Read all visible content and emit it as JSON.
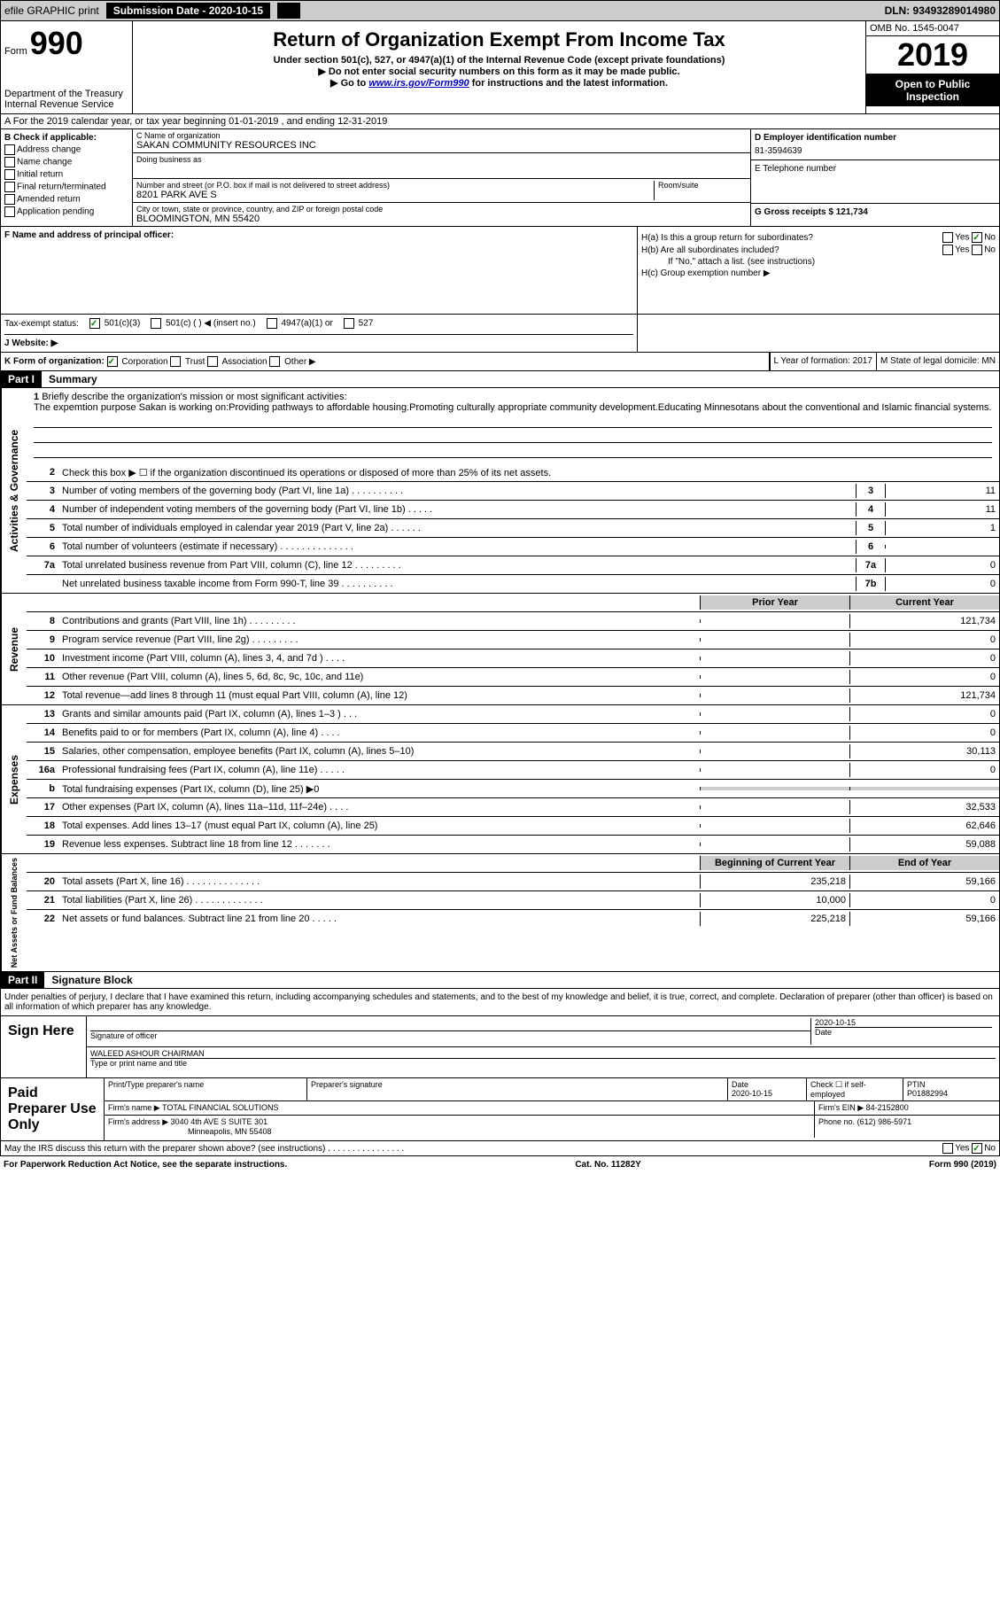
{
  "topbar": {
    "efile": "efile GRAPHIC print",
    "submission_label": "Submission Date - 2020-10-15",
    "dln": "DLN: 93493289014980"
  },
  "header": {
    "form_label": "Form",
    "form_number": "990",
    "dept": "Department of the Treasury",
    "irs": "Internal Revenue Service",
    "title": "Return of Organization Exempt From Income Tax",
    "subtitle": "Under section 501(c), 527, or 4947(a)(1) of the Internal Revenue Code (except private foundations)",
    "note1": "▶ Do not enter social security numbers on this form as it may be made public.",
    "note2_pre": "▶ Go to ",
    "note2_link": "www.irs.gov/Form990",
    "note2_post": " for instructions and the latest information.",
    "omb": "OMB No. 1545-0047",
    "year": "2019",
    "open_public": "Open to Public Inspection"
  },
  "section_a": "A For the 2019 calendar year, or tax year beginning 01-01-2019   , and ending 12-31-2019",
  "col_b": {
    "header": "B Check if applicable:",
    "items": [
      "Address change",
      "Name change",
      "Initial return",
      "Final return/terminated",
      "Amended return",
      "Application pending"
    ]
  },
  "org": {
    "name_label": "C Name of organization",
    "name": "SAKAN COMMUNITY RESOURCES INC",
    "dba_label": "Doing business as",
    "addr_label": "Number and street (or P.O. box if mail is not delivered to street address)",
    "room_label": "Room/suite",
    "addr": "8201 PARK AVE S",
    "city_label": "City or town, state or province, country, and ZIP or foreign postal code",
    "city": "BLOOMINGTON, MN  55420"
  },
  "right_col": {
    "ein_label": "D Employer identification number",
    "ein": "81-3594639",
    "phone_label": "E Telephone number",
    "gross_label": "G Gross receipts $ 121,734"
  },
  "f_label": "F  Name and address of principal officer:",
  "h": {
    "ha": "H(a)  Is this a group return for subordinates?",
    "hb": "H(b)  Are all subordinates included?",
    "hb_note": "If \"No,\" attach a list. (see instructions)",
    "hc": "H(c)  Group exemption number ▶",
    "yes": "Yes",
    "no": "No"
  },
  "tax_status": {
    "label": "Tax-exempt status:",
    "opt1": "501(c)(3)",
    "opt2": "501(c) (  ) ◀ (insert no.)",
    "opt3": "4947(a)(1) or",
    "opt4": "527"
  },
  "j": "J  Website: ▶",
  "k": {
    "label": "K Form of organization:",
    "corp": "Corporation",
    "trust": "Trust",
    "assoc": "Association",
    "other": "Other ▶"
  },
  "l": "L Year of formation: 2017",
  "m": "M State of legal domicile: MN",
  "part1": {
    "header": "Part I",
    "title": "Summary"
  },
  "summary_intro": {
    "num": "1",
    "text": "Briefly describe the organization's mission or most significant activities:",
    "desc": "The expemtion purpose Sakan is working on:Providing pathways to affordable housing.Promoting culturally appropriate community development.Educating Minnesotans about the conventional and Islamic financial systems."
  },
  "lines_ag": [
    {
      "num": "2",
      "text": "Check this box ▶ ☐ if the organization discontinued its operations or disposed of more than 25% of its net assets."
    },
    {
      "num": "3",
      "text": "Number of voting members of the governing body (Part VI, line 1a)  .  .  .  .  .  .  .  .  .  .",
      "box": "3",
      "val": "11"
    },
    {
      "num": "4",
      "text": "Number of independent voting members of the governing body (Part VI, line 1b)  .  .  .  .  .",
      "box": "4",
      "val": "11"
    },
    {
      "num": "5",
      "text": "Total number of individuals employed in calendar year 2019 (Part V, line 2a)  .  .  .  .  .  .",
      "box": "5",
      "val": "1"
    },
    {
      "num": "6",
      "text": "Total number of volunteers (estimate if necessary)   .  .  .  .  .  .  .  .  .  .  .  .  .  .",
      "box": "6",
      "val": ""
    },
    {
      "num": "7a",
      "text": "Total unrelated business revenue from Part VIII, column (C), line 12  .  .  .  .  .  .  .  .  .",
      "box": "7a",
      "val": "0"
    },
    {
      "num": "",
      "text": "Net unrelated business taxable income from Form 990-T, line 39  .  .  .  .  .  .  .  .  .  .",
      "box": "7b",
      "val": "0"
    }
  ],
  "year_headers": {
    "prior": "Prior Year",
    "current": "Current Year"
  },
  "revenue": [
    {
      "num": "8",
      "text": "Contributions and grants (Part VIII, line 1h)   .  .  .  .  .  .  .  .  .",
      "prior": "",
      "current": "121,734"
    },
    {
      "num": "9",
      "text": "Program service revenue (Part VIII, line 2g)   .  .  .  .  .  .  .  .  .",
      "prior": "",
      "current": "0"
    },
    {
      "num": "10",
      "text": "Investment income (Part VIII, column (A), lines 3, 4, and 7d )   .  .  .  .",
      "prior": "",
      "current": "0"
    },
    {
      "num": "11",
      "text": "Other revenue (Part VIII, column (A), lines 5, 6d, 8c, 9c, 10c, and 11e)",
      "prior": "",
      "current": "0"
    },
    {
      "num": "12",
      "text": "Total revenue—add lines 8 through 11 (must equal Part VIII, column (A), line 12)",
      "prior": "",
      "current": "121,734"
    }
  ],
  "expenses": [
    {
      "num": "13",
      "text": "Grants and similar amounts paid (Part IX, column (A), lines 1–3 )  .  .  .",
      "prior": "",
      "current": "0"
    },
    {
      "num": "14",
      "text": "Benefits paid to or for members (Part IX, column (A), line 4)  .  .  .  .",
      "prior": "",
      "current": "0"
    },
    {
      "num": "15",
      "text": "Salaries, other compensation, employee benefits (Part IX, column (A), lines 5–10)",
      "prior": "",
      "current": "30,113"
    },
    {
      "num": "16a",
      "text": "Professional fundraising fees (Part IX, column (A), line 11e)  .  .  .  .  .",
      "prior": "",
      "current": "0"
    },
    {
      "num": "b",
      "text": "Total fundraising expenses (Part IX, column (D), line 25) ▶0",
      "prior": "shaded",
      "current": "shaded"
    },
    {
      "num": "17",
      "text": "Other expenses (Part IX, column (A), lines 11a–11d, 11f–24e)  .  .  .  .",
      "prior": "",
      "current": "32,533"
    },
    {
      "num": "18",
      "text": "Total expenses. Add lines 13–17 (must equal Part IX, column (A), line 25)",
      "prior": "",
      "current": "62,646"
    },
    {
      "num": "19",
      "text": "Revenue less expenses. Subtract line 18 from line 12  .  .  .  .  .  .  .",
      "prior": "",
      "current": "59,088"
    }
  ],
  "net_headers": {
    "begin": "Beginning of Current Year",
    "end": "End of Year"
  },
  "netassets": [
    {
      "num": "20",
      "text": "Total assets (Part X, line 16)  .  .  .  .  .  .  .  .  .  .  .  .  .  .",
      "prior": "235,218",
      "current": "59,166"
    },
    {
      "num": "21",
      "text": "Total liabilities (Part X, line 26)  .  .  .  .  .  .  .  .  .  .  .  .  .",
      "prior": "10,000",
      "current": "0"
    },
    {
      "num": "22",
      "text": "Net assets or fund balances. Subtract line 21 from line 20  .  .  .  .  .",
      "prior": "225,218",
      "current": "59,166"
    }
  ],
  "part2": {
    "header": "Part II",
    "title": "Signature Block"
  },
  "sig_disclaimer": "Under penalties of perjury, I declare that I have examined this return, including accompanying schedules and statements, and to the best of my knowledge and belief, it is true, correct, and complete. Declaration of preparer (other than officer) is based on all information of which preparer has any knowledge.",
  "sign": {
    "here": "Sign Here",
    "sig_label": "Signature of officer",
    "date_label": "Date",
    "date": "2020-10-15",
    "name": "WALEED ASHOUR CHAIRMAN",
    "name_label": "Type or print name and title"
  },
  "paid": {
    "label": "Paid Preparer Use Only",
    "prep_name_label": "Print/Type preparer's name",
    "prep_sig_label": "Preparer's signature",
    "date_label": "Date",
    "date": "2020-10-15",
    "check_label": "Check ☐ if self-employed",
    "ptin_label": "PTIN",
    "ptin": "P01882994",
    "firm_name_label": "Firm's name    ▶",
    "firm_name": "TOTAL FINANCIAL SOLUTIONS",
    "firm_ein_label": "Firm's EIN ▶",
    "firm_ein": "84-2152800",
    "firm_addr_label": "Firm's address ▶",
    "firm_addr1": "3040 4th AVE S SUITE 301",
    "firm_addr2": "Minneapolis, MN  55408",
    "phone_label": "Phone no.",
    "phone": "(612) 986-5971"
  },
  "discuss": "May the IRS discuss this return with the preparer shown above? (see instructions)   .  .  .  .  .  .  .  .  .  .  .  .  .  .  .  .",
  "footer": {
    "paperwork": "For Paperwork Reduction Act Notice, see the separate instructions.",
    "cat": "Cat. No. 11282Y",
    "form": "Form 990 (2019)"
  },
  "side_labels": {
    "ag": "Activities & Governance",
    "rev": "Revenue",
    "exp": "Expenses",
    "net": "Net Assets or Fund Balances"
  }
}
